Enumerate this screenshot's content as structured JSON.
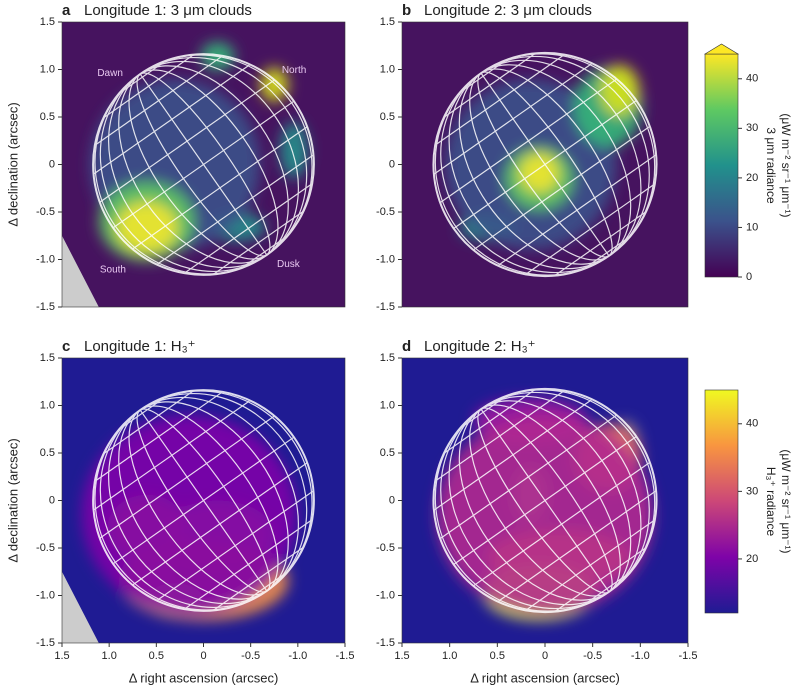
{
  "charts": [
    {
      "type": "heatmap",
      "panel": "a",
      "title": "Longitude 1: 3 μm clouds",
      "ylabel": "Δ declination (arcsec)",
      "annotations": [
        "Dawn",
        "North",
        "South",
        "Dusk"
      ],
      "background": "#46135f",
      "xlim": [
        1.5,
        -1.5
      ],
      "ylim": [
        -1.5,
        1.5
      ],
      "yticks": [
        -1.5,
        {
          "value": -1.0,
          "label": "-1.0"
        },
        -0.5,
        0,
        0.5,
        {
          "value": 1.0,
          "label": "1.0"
        },
        1.5
      ]
    },
    {
      "type": "heatmap",
      "panel": "b",
      "title": "Longitude 2: 3 μm clouds",
      "background": "#46135f",
      "xlim": [
        1.5,
        -1.5
      ],
      "ylim": [
        -1.5,
        1.5
      ],
      "yticks": [
        -1.5,
        {
          "value": -1.0,
          "label": "-1.0"
        },
        -0.5,
        0,
        0.5,
        {
          "value": 1.0,
          "label": "1.0"
        },
        1.5
      ],
      "colorbar": {
        "label": "3 μm radiance",
        "units": "(μW m⁻² sr⁻¹ μm⁻¹)",
        "lim": [
          0,
          45
        ],
        "ticks": [
          0,
          10,
          20,
          30,
          40
        ],
        "extend": "max",
        "colors": [
          "#440154",
          "#3b528b",
          "#21918c",
          "#5ec962",
          "#fde725"
        ]
      }
    },
    {
      "type": "heatmap",
      "panel": "c",
      "title": "Longitude 1: H₃⁺",
      "ylabel": "Δ declination (arcsec)",
      "xlabel": "Δ right ascension (arcsec)",
      "background": "#1f1b93",
      "xlim": [
        1.5,
        -1.5
      ],
      "ylim": [
        -1.5,
        1.5
      ],
      "xticks": [
        1.5,
        {
          "value": 1.0,
          "label": "1.0"
        },
        0.5,
        0,
        -0.5,
        {
          "value": -1.0,
          "label": "-1.0"
        },
        -1.5
      ],
      "yticks": [
        -1.5,
        {
          "value": -1.0,
          "label": "-1.0"
        },
        -0.5,
        0,
        0.5,
        {
          "value": 1.0,
          "label": "1.0"
        },
        1.5
      ]
    },
    {
      "type": "heatmap",
      "panel": "d",
      "title": "Longitude 2: H₃⁺",
      "xlabel": "Δ right ascension (arcsec)",
      "background": "#1f1b93",
      "xlim": [
        1.5,
        -1.5
      ],
      "ylim": [
        -1.5,
        1.5
      ],
      "xticks": [
        1.5,
        {
          "value": 1.0,
          "label": "1.0"
        },
        0.5,
        0,
        -0.5,
        {
          "value": -1.0,
          "label": "-1.0"
        },
        -1.5
      ],
      "yticks": [
        -1.5,
        {
          "value": -1.0,
          "label": "-1.0"
        },
        -0.5,
        0,
        0.5,
        {
          "value": 1.0,
          "label": "1.0"
        },
        1.5
      ],
      "colorbar": {
        "label": "H₃⁺ radiance",
        "units": "(μW m⁻² sr⁻¹ μm⁻¹)",
        "lim": [
          12,
          45
        ],
        "ticks": [
          20,
          30,
          40
        ],
        "colors": [
          "#1f1b93",
          "#7e03a8",
          "#cc4778",
          "#f89540",
          "#f0f921"
        ]
      }
    }
  ]
}
